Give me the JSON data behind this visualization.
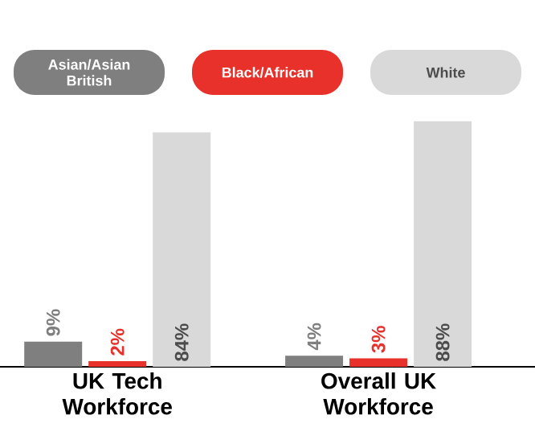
{
  "chart_data": {
    "type": "bar",
    "categories": [
      "UK Tech Workforce",
      "Overall UK Workforce"
    ],
    "series": [
      {
        "name": "Asian/Asian British",
        "color": "#7f7f7f",
        "values": [
          9,
          4
        ],
        "value_labels": [
          "9%",
          "4%"
        ]
      },
      {
        "name": "Black/African",
        "color": "#e8312a",
        "values": [
          2,
          3
        ],
        "value_labels": [
          "2%",
          "3%"
        ]
      },
      {
        "name": "White",
        "color": "#d9d9d9",
        "values": [
          84,
          88
        ],
        "value_labels": [
          "84%",
          "88%"
        ]
      }
    ],
    "tick_labels": "x",
    "legend": "top",
    "grid": false
  }
}
